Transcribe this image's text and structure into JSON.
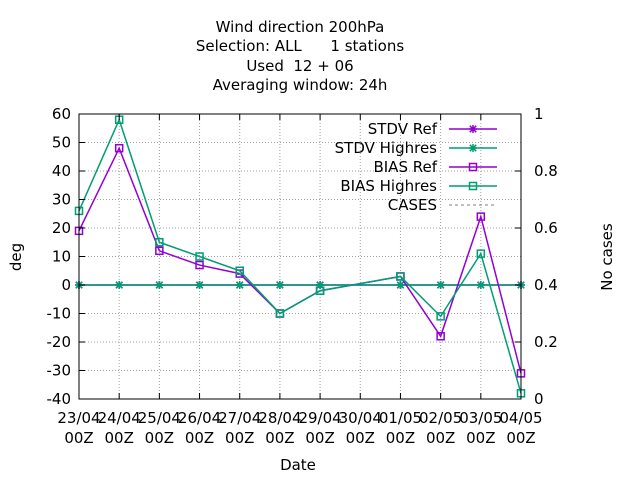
{
  "chart_data": {
    "type": "line",
    "title_lines": [
      "Wind direction 200hPa",
      "Selection: ALL      1 stations",
      "Used  12 + 06",
      "Averaging window: 24h"
    ],
    "xlabel": "Date",
    "ylabel": "deg",
    "y2label": "No cases",
    "ylim": [
      -40,
      60
    ],
    "y2lim": [
      0,
      1
    ],
    "yticks": [
      "-40",
      "-30",
      "-20",
      "-10",
      "0",
      "10",
      "20",
      "30",
      "40",
      "50",
      "60"
    ],
    "y2ticks": [
      "0",
      "0.2",
      "0.4",
      "0.6",
      "0.8",
      "1"
    ],
    "categories": [
      [
        "23/04",
        "00Z"
      ],
      [
        "24/04",
        "00Z"
      ],
      [
        "25/04",
        "00Z"
      ],
      [
        "26/04",
        "00Z"
      ],
      [
        "27/04",
        "00Z"
      ],
      [
        "28/04",
        "00Z"
      ],
      [
        "29/04",
        "00Z"
      ],
      [
        "30/04",
        "00Z"
      ],
      [
        "01/05",
        "00Z"
      ],
      [
        "02/05",
        "00Z"
      ],
      [
        "03/05",
        "00Z"
      ],
      [
        "04/05",
        "00Z"
      ]
    ],
    "grid": true,
    "legend_position": "top-right",
    "series": [
      {
        "name": "STDV Ref",
        "color": "#9400d3",
        "marker": "star",
        "dashed": false,
        "points": [
          [
            0,
            0
          ],
          [
            1,
            0
          ],
          [
            2,
            0
          ],
          [
            3,
            0
          ],
          [
            4,
            0
          ],
          [
            5,
            0
          ],
          [
            6,
            0
          ],
          [
            8,
            0
          ],
          [
            9,
            0
          ],
          [
            10,
            0
          ],
          [
            11,
            0
          ]
        ]
      },
      {
        "name": "STDV Highres",
        "color": "#009e73",
        "marker": "star",
        "dashed": false,
        "points": [
          [
            0,
            0
          ],
          [
            1,
            0
          ],
          [
            2,
            0
          ],
          [
            3,
            0
          ],
          [
            4,
            0
          ],
          [
            5,
            0
          ],
          [
            6,
            0
          ],
          [
            8,
            0
          ],
          [
            9,
            0
          ],
          [
            10,
            0
          ],
          [
            11,
            0
          ]
        ]
      },
      {
        "name": "BIAS Ref",
        "color": "#9400d3",
        "marker": "square",
        "dashed": false,
        "points": [
          [
            0,
            19
          ],
          [
            1,
            48
          ],
          [
            2,
            12
          ],
          [
            3,
            7
          ],
          [
            4,
            4
          ],
          [
            5,
            -10
          ],
          [
            6,
            -2
          ],
          [
            8,
            3
          ],
          [
            9,
            -18
          ],
          [
            10,
            24
          ],
          [
            11,
            -31
          ]
        ]
      },
      {
        "name": "BIAS Highres",
        "color": "#009e73",
        "marker": "square",
        "dashed": false,
        "points": [
          [
            0,
            26
          ],
          [
            1,
            58
          ],
          [
            2,
            15
          ],
          [
            3,
            10
          ],
          [
            4,
            5
          ],
          [
            5,
            -10
          ],
          [
            6,
            -2
          ],
          [
            8,
            3
          ],
          [
            9,
            -11
          ],
          [
            10,
            11
          ],
          [
            11,
            -38
          ]
        ]
      },
      {
        "name": "CASES",
        "color": "#808080",
        "marker": "none",
        "dashed": true,
        "points": []
      }
    ]
  }
}
